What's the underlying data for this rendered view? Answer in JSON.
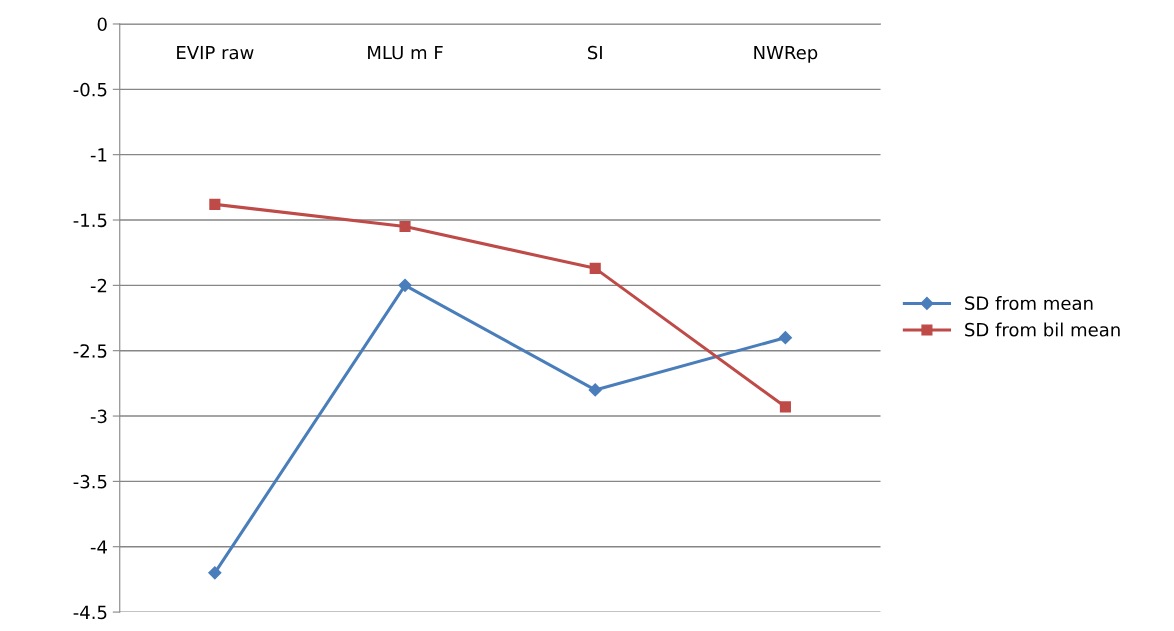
{
  "chart_data": {
    "type": "line",
    "categories": [
      "EVIP raw",
      "MLU m F",
      "SI",
      "NWRep"
    ],
    "series": [
      {
        "name": "SD from mean",
        "color": "#4a7ebb",
        "marker": "diamond",
        "values": [
          -4.2,
          -2.0,
          -2.8,
          -2.4
        ]
      },
      {
        "name": "SD from bil mean",
        "color": "#be4b48",
        "marker": "square",
        "values": [
          -1.38,
          -1.55,
          -1.87,
          -2.93
        ]
      }
    ],
    "ylim": [
      -4.5,
      0
    ],
    "yticks": [
      {
        "value": 0,
        "label": "0"
      },
      {
        "value": -0.5,
        "label": "-0.5"
      },
      {
        "value": -1,
        "label": "-1"
      },
      {
        "value": -1.5,
        "label": "-1.5"
      },
      {
        "value": -2,
        "label": "-2"
      },
      {
        "value": -2.5,
        "label": "-2.5"
      },
      {
        "value": -3,
        "label": "-3"
      },
      {
        "value": -3.5,
        "label": "-3.5"
      },
      {
        "value": -4,
        "label": "-4"
      },
      {
        "value": -4.5,
        "label": "-4.5"
      }
    ],
    "grid": "y",
    "legend": "right",
    "line_style": "solid"
  }
}
